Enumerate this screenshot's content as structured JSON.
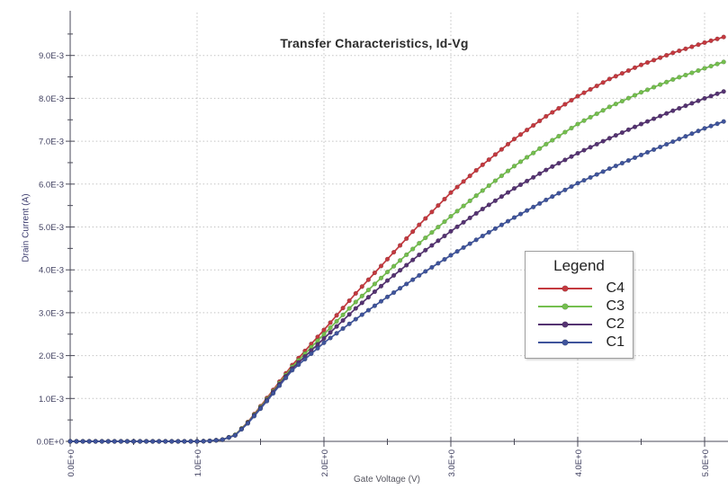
{
  "chart_data": {
    "type": "line",
    "title": "Transfer Characteristics, Id-Vg",
    "xlabel": "Gate Voltage (V)",
    "ylabel": "Drain Current (A)",
    "xlim": [
      0,
      5.15
    ],
    "ylim_A": [
      0,
      0.01
    ],
    "grid": "dotted at major ticks",
    "x_tick_values": [
      0,
      1,
      2,
      3,
      4,
      5
    ],
    "x_tick_labels": [
      "0.0E+0",
      "1.0E+0",
      "2.0E+0",
      "3.0E+0",
      "4.0E+0",
      "5.0E+0"
    ],
    "y_tick_values_mA": [
      0,
      1,
      2,
      3,
      4,
      5,
      6,
      7,
      8,
      9
    ],
    "y_tick_labels": [
      "0.0E+0",
      "1.0E-3",
      "2.0E-3",
      "3.0E-3",
      "4.0E-3",
      "5.0E-3",
      "6.0E-3",
      "7.0E-3",
      "8.0E-3",
      "9.0E-3"
    ],
    "minor_tick_step": 0.5,
    "marker_step_v": 0.05,
    "legend_title": "Legend",
    "legend_position": "right-middle",
    "x_anchors_v": [
      0,
      0.5,
      1.0,
      1.1,
      1.2,
      1.3,
      1.4,
      1.5,
      1.6,
      1.75,
      2.0,
      2.25,
      2.5,
      2.75,
      3.0,
      3.25,
      3.5,
      3.75,
      4.0,
      4.25,
      4.5,
      4.75,
      5.0,
      5.15
    ],
    "series": [
      {
        "name": "C4",
        "color": "#c4393f",
        "values_mA": [
          0,
          0,
          0,
          0.01,
          0.04,
          0.15,
          0.45,
          0.82,
          1.2,
          1.78,
          2.6,
          3.45,
          4.25,
          5.05,
          5.8,
          6.45,
          7.05,
          7.58,
          8.05,
          8.45,
          8.78,
          9.06,
          9.3,
          9.43
        ]
      },
      {
        "name": "C3",
        "color": "#74bf4e",
        "values_mA": [
          0,
          0,
          0,
          0.01,
          0.04,
          0.15,
          0.44,
          0.8,
          1.17,
          1.74,
          2.5,
          3.25,
          3.95,
          4.62,
          5.25,
          5.85,
          6.42,
          6.93,
          7.4,
          7.8,
          8.14,
          8.44,
          8.7,
          8.85
        ]
      },
      {
        "name": "C2",
        "color": "#553372",
        "values_mA": [
          0,
          0,
          0,
          0.01,
          0.04,
          0.14,
          0.43,
          0.78,
          1.15,
          1.7,
          2.4,
          3.1,
          3.75,
          4.35,
          4.9,
          5.42,
          5.9,
          6.33,
          6.72,
          7.07,
          7.4,
          7.71,
          8.0,
          8.16
        ]
      },
      {
        "name": "C1",
        "color": "#3f549c",
        "values_mA": [
          0,
          0,
          0,
          0.01,
          0.04,
          0.14,
          0.42,
          0.76,
          1.12,
          1.66,
          2.3,
          2.85,
          3.37,
          3.87,
          4.34,
          4.79,
          5.22,
          5.63,
          6.02,
          6.36,
          6.68,
          6.99,
          7.3,
          7.46
        ]
      }
    ],
    "draw_order": [
      "C4",
      "C3",
      "C2",
      "C1"
    ]
  },
  "colors": {
    "background": "#ffffff",
    "gridline": "#c3c3c3",
    "axis": "#4a4a58",
    "y_tick_label": "#3e3e5e",
    "x_tick_label": "#3e3e5e",
    "title_text": "#2b2b2b",
    "legend_border": "#9e9e9e"
  }
}
